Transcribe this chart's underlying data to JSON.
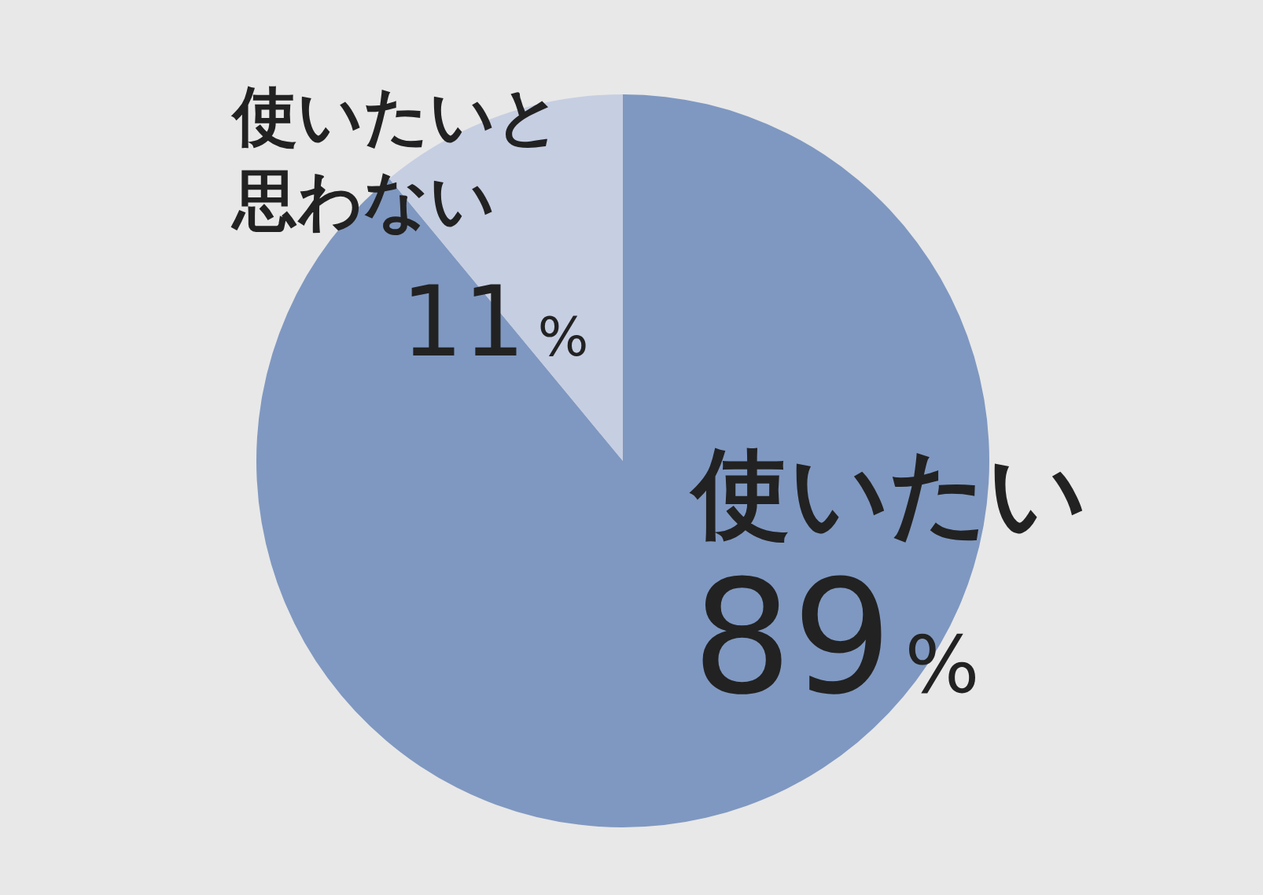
{
  "chart_data": {
    "type": "pie",
    "categories": [
      "使いたい",
      "使いたいと思わない"
    ],
    "values": [
      89,
      11
    ],
    "value_labels": [
      "89%",
      "11%"
    ],
    "colors": [
      "#7f98c1",
      "#c6cee2"
    ],
    "legend": false
  }
}
